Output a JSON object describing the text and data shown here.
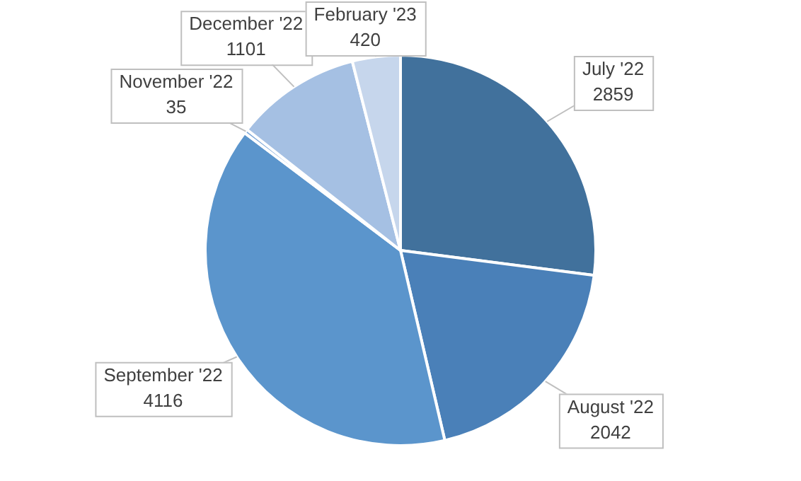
{
  "chart_data": {
    "type": "pie",
    "categories": [
      "July '22",
      "August '22",
      "September '22",
      "November '22",
      "December '22",
      "February '23"
    ],
    "values": [
      2859,
      2042,
      4116,
      35,
      1101,
      420
    ],
    "colors": [
      "#41719c",
      "#4a80b8",
      "#5b95cc",
      "#7aa6d8",
      "#a5c0e3",
      "#c6d6ec"
    ],
    "data_labels": true,
    "legend": false
  }
}
